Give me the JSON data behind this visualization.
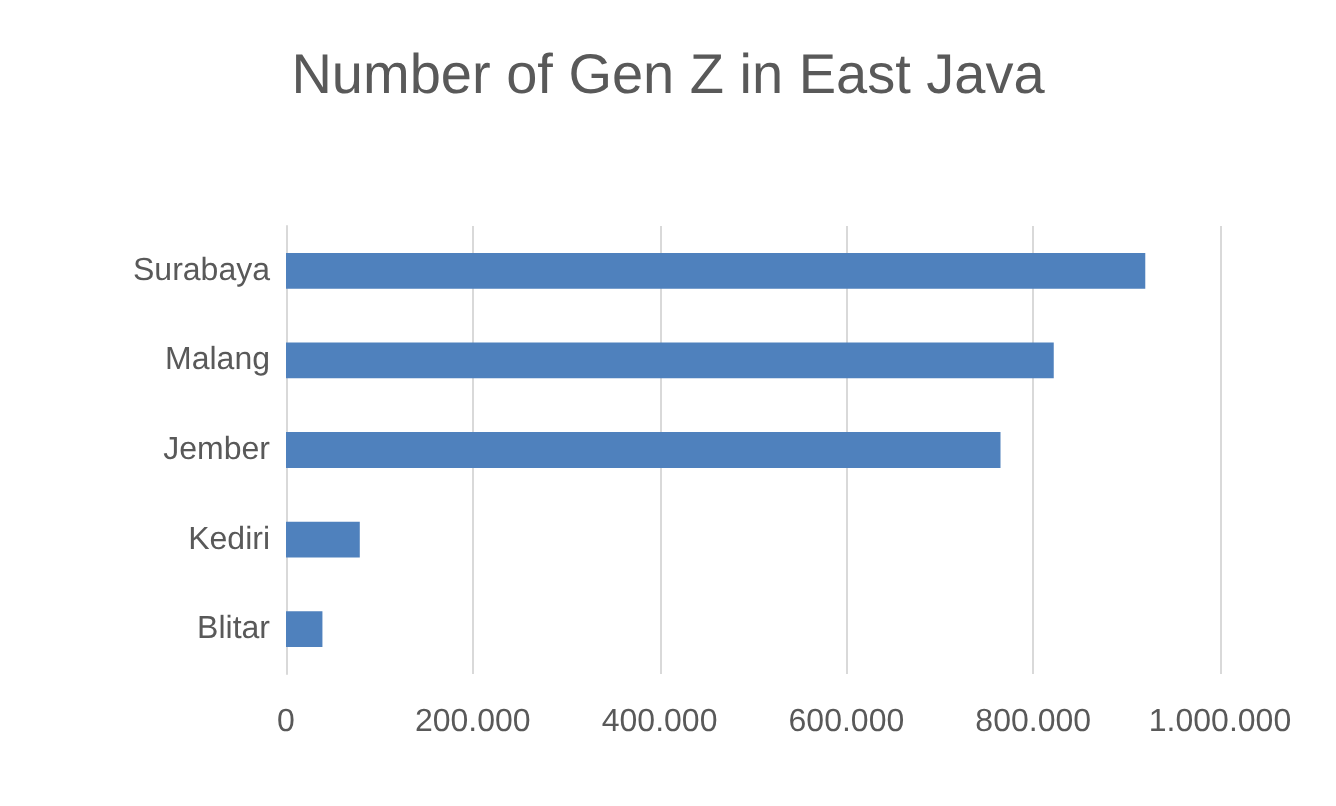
{
  "chart_data": {
    "type": "bar",
    "orientation": "horizontal",
    "title": "Number of Gen Z in East Java",
    "categories": [
      "Surabaya",
      "Malang",
      "Jember",
      "Kediri",
      "Blitar"
    ],
    "values": [
      920000,
      822000,
      765000,
      79000,
      39000
    ],
    "color": "#4f81bd",
    "xlim": [
      0,
      1000000
    ],
    "xticks": [
      0,
      {
        "value": 200000,
        "label": "200.000"
      },
      {
        "value": 400000,
        "label": "400.000"
      },
      {
        "value": 600000,
        "label": "600.000"
      },
      {
        "value": 800000,
        "label": "800.000"
      },
      {
        "value": 1000000,
        "label": "1.000.000"
      }
    ],
    "grid": "x"
  }
}
